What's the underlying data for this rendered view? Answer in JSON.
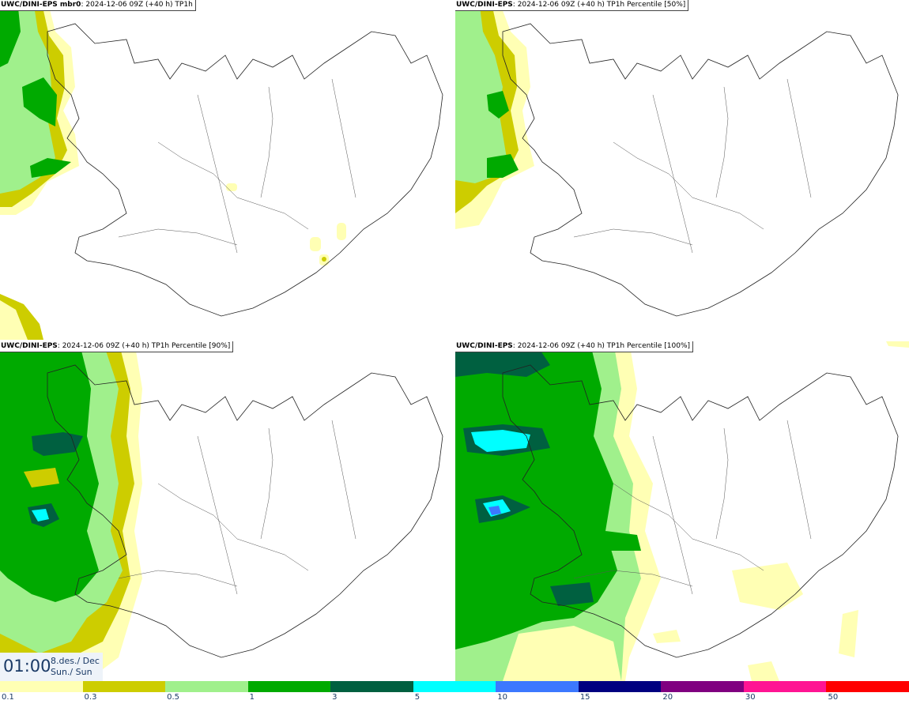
{
  "panels": [
    {
      "model": "UWC/DINI-EPS mbr0",
      "params": ": 2024-12-06 09Z (+40 h) TP1h"
    },
    {
      "model": "UWC/DINI-EPS",
      "params": ": 2024-12-06 09Z (+40 h) TP1h Percentile [50%]"
    },
    {
      "model": "UWC/DINI-EPS",
      "params": ": 2024-12-06 09Z (+40 h) TP1h Percentile [90%]"
    },
    {
      "model": "UWC/DINI-EPS",
      "params": ": 2024-12-06 09Z (+40 h) TP1h Percentile [100%]"
    }
  ],
  "time": {
    "hour": "01:00",
    "date_line1": "8.des./ Dec",
    "date_line2": "Sun./ Sun"
  },
  "colorbar": {
    "colors": [
      "#ffffb4",
      "#cdcd00",
      "#a0f08c",
      "#00aa00",
      "#006040",
      "#00ffff",
      "#3c78ff",
      "#000080",
      "#800080",
      "#ff1493",
      "#ff0000"
    ],
    "labels": [
      "0.1",
      "0.3",
      "0.5",
      "1",
      "3",
      "5",
      "10",
      "15",
      "20",
      "30",
      "50"
    ]
  },
  "legend_colors": {
    "low": "#ffffb4",
    "mid": "#cdcd00",
    "light_green": "#a0f08c",
    "green": "#00aa00",
    "dark_green": "#006040",
    "cyan": "#00ffff",
    "blue": "#3c78ff"
  }
}
